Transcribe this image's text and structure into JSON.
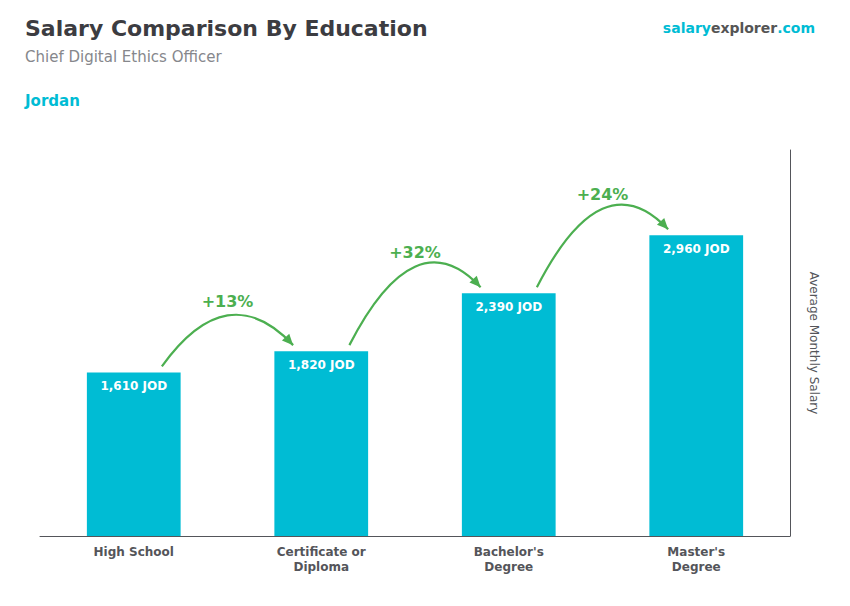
{
  "chart_data": {
    "type": "bar",
    "title": "Salary Comparison By Education",
    "subtitle": "Chief Digital Ethics Officer",
    "country": "Jordan",
    "watermark": [
      "salary",
      "explorer",
      ".com"
    ],
    "ylabel": "Average Monthly Salary",
    "categories": [
      "High School",
      "Certificate or\nDiploma",
      "Bachelor's\nDegree",
      "Master's\nDegree"
    ],
    "values": [
      1610,
      1820,
      2390,
      2960
    ],
    "value_labels": [
      "1,610 JOD",
      "1,820 JOD",
      "2,390 JOD",
      "2,960 JOD"
    ],
    "data_labels": true,
    "color": "#00bcd4",
    "annotations": [
      "+13%",
      "+32%",
      "+24%"
    ],
    "ylim": [
      0,
      3800
    ],
    "grid": false,
    "tick_labels": "x"
  }
}
